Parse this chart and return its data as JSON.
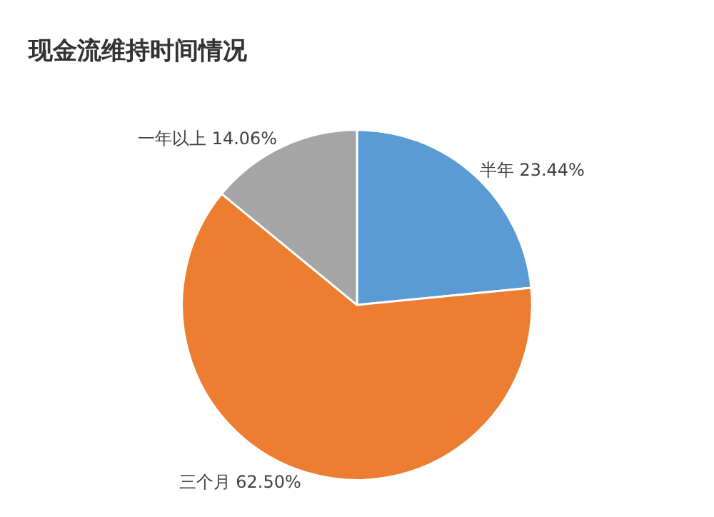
{
  "chart_data": {
    "type": "pie",
    "title": "现金流维持时间情况",
    "categories": [
      "半年",
      "三个月",
      "一年以上"
    ],
    "values": [
      23.44,
      62.5,
      14.06
    ],
    "value_labels": [
      "23.44%",
      "62.50%",
      "14.06%"
    ],
    "colors": [
      "#5b9bd5",
      "#ed7d31",
      "#a5a5a5"
    ],
    "legend": false
  }
}
